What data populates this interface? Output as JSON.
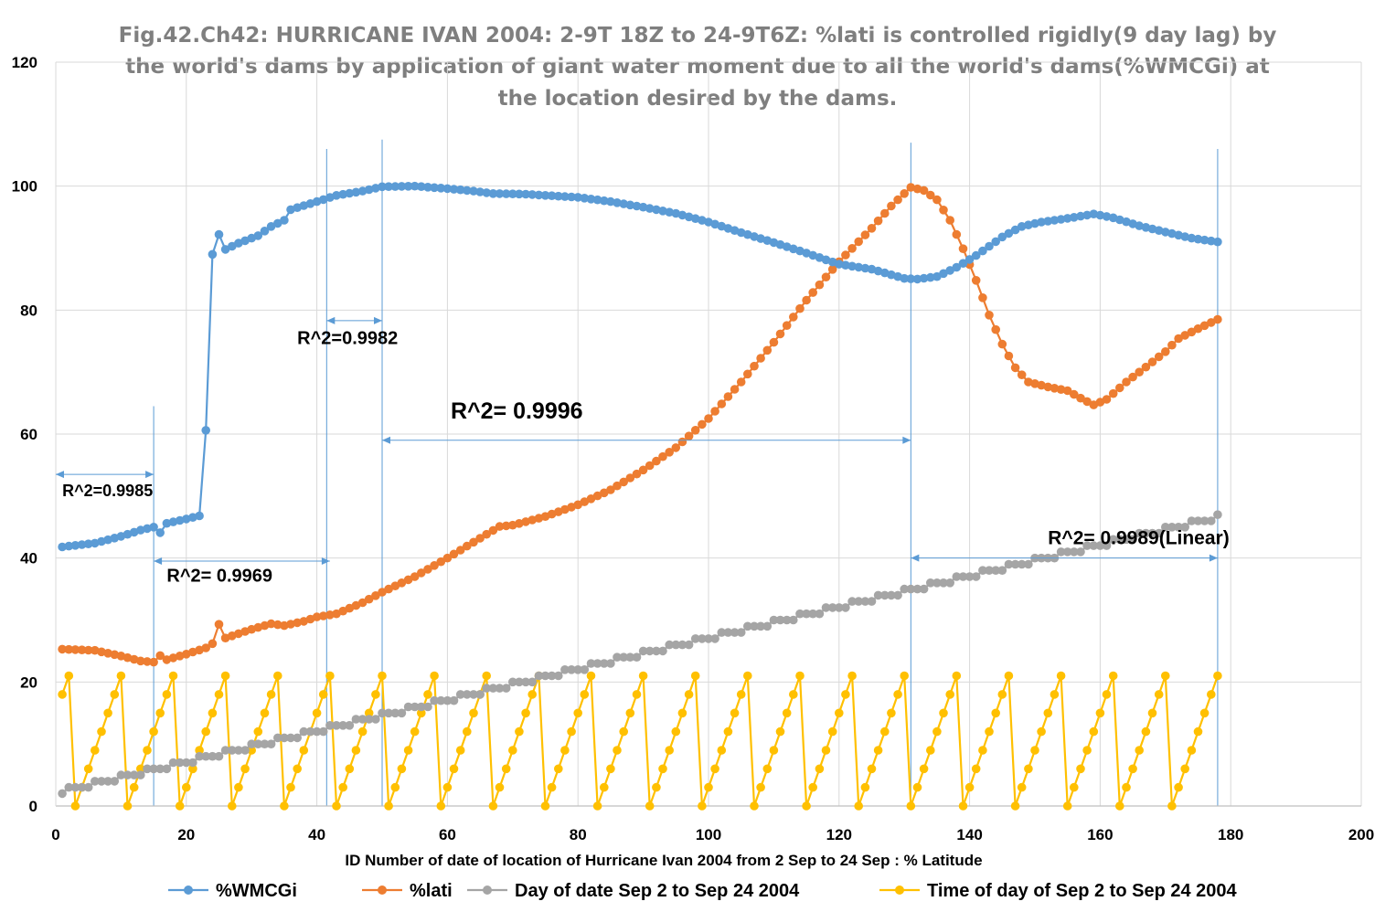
{
  "chart_data": {
    "type": "line",
    "title_lines": [
      "Fig.42.Ch42: HURRICANE IVAN 2004: 2-9T 18Z to 24-9T6Z:  %lati is controlled rigidly(9 day lag) by",
      "the world's dams by application of giant water moment due to all the world's dams(%WMCGi) at",
      "the location desired by the dams."
    ],
    "xlabel": "ID Number  of date of location of Hurricane Ivan 2004 from 2 Sep to 24 Sep : % Latitude",
    "ylabel": "",
    "xlim": [
      0,
      200
    ],
    "ylim": [
      0,
      120
    ],
    "x_ticks": [
      "0",
      "20",
      "40",
      "60",
      "80",
      "100",
      "120",
      "140",
      "160",
      "180",
      "200"
    ],
    "y_ticks": [
      "0",
      "20",
      "40",
      "60",
      "80",
      "100",
      "120"
    ],
    "grid": true,
    "legend_position": "bottom",
    "series": [
      {
        "name": "%WMCGi",
        "color": "#5b9bd5",
        "keypoints": [
          [
            1,
            41.8
          ],
          [
            6,
            42.4
          ],
          [
            10,
            43.5
          ],
          [
            13,
            44.5
          ],
          [
            15,
            45.0
          ],
          [
            15.8,
            43.8
          ],
          [
            17,
            45.6
          ],
          [
            20,
            46.3
          ],
          [
            22,
            46.8
          ],
          [
            23,
            60.6
          ],
          [
            24,
            89.0
          ],
          [
            25,
            92.2
          ],
          [
            26,
            89.8
          ],
          [
            28,
            90.8
          ],
          [
            31,
            92.0
          ],
          [
            33,
            93.5
          ],
          [
            35,
            94.5
          ],
          [
            36,
            96.2
          ],
          [
            40,
            97.5
          ],
          [
            43,
            98.5
          ],
          [
            47,
            99.2
          ],
          [
            50,
            99.9
          ],
          [
            55,
            100.0
          ],
          [
            60,
            99.6
          ],
          [
            64,
            99.2
          ],
          [
            67,
            98.8
          ],
          [
            72,
            98.7
          ],
          [
            75,
            98.5
          ],
          [
            80,
            98.2
          ],
          [
            85,
            97.5
          ],
          [
            90,
            96.6
          ],
          [
            95,
            95.6
          ],
          [
            100,
            94.2
          ],
          [
            105,
            92.5
          ],
          [
            110,
            90.9
          ],
          [
            115,
            89.2
          ],
          [
            120,
            87.4
          ],
          [
            125,
            86.6
          ],
          [
            130,
            85.1
          ],
          [
            132,
            85.0
          ],
          [
            135,
            85.4
          ],
          [
            138,
            86.9
          ],
          [
            141,
            88.8
          ],
          [
            145,
            91.8
          ],
          [
            148,
            93.5
          ],
          [
            151,
            94.2
          ],
          [
            155,
            94.8
          ],
          [
            159,
            95.5
          ],
          [
            162,
            94.9
          ],
          [
            166,
            93.6
          ],
          [
            170,
            92.6
          ],
          [
            174,
            91.6
          ],
          [
            178,
            91.0
          ]
        ]
      },
      {
        "name": "%lati",
        "color": "#ed7d31",
        "keypoints": [
          [
            1,
            25.3
          ],
          [
            6,
            25.1
          ],
          [
            10,
            24.2
          ],
          [
            13,
            23.4
          ],
          [
            15,
            23.2
          ],
          [
            15.8,
            24.4
          ],
          [
            17,
            23.6
          ],
          [
            20,
            24.5
          ],
          [
            23,
            25.5
          ],
          [
            24,
            26.2
          ],
          [
            25,
            29.3
          ],
          [
            26,
            27.1
          ],
          [
            30,
            28.5
          ],
          [
            33,
            29.4
          ],
          [
            35,
            29.1
          ],
          [
            38,
            29.8
          ],
          [
            40,
            30.5
          ],
          [
            43,
            31.0
          ],
          [
            47,
            32.8
          ],
          [
            50,
            34.5
          ],
          [
            55,
            37.0
          ],
          [
            60,
            40.0
          ],
          [
            65,
            43.2
          ],
          [
            68,
            45.1
          ],
          [
            70,
            45.3
          ],
          [
            75,
            46.7
          ],
          [
            80,
            48.6
          ],
          [
            85,
            51.0
          ],
          [
            90,
            54.2
          ],
          [
            95,
            57.8
          ],
          [
            100,
            62.5
          ],
          [
            105,
            68.4
          ],
          [
            110,
            74.8
          ],
          [
            115,
            81.6
          ],
          [
            120,
            87.8
          ],
          [
            125,
            93.2
          ],
          [
            128,
            96.8
          ],
          [
            131,
            99.8
          ],
          [
            133,
            99.3
          ],
          [
            135,
            97.8
          ],
          [
            137,
            94.5
          ],
          [
            139,
            89.9
          ],
          [
            141,
            84.8
          ],
          [
            143,
            79.2
          ],
          [
            145,
            74.5
          ],
          [
            147,
            70.7
          ],
          [
            149,
            68.4
          ],
          [
            152,
            67.6
          ],
          [
            155,
            67.0
          ],
          [
            157,
            65.8
          ],
          [
            159,
            64.7
          ],
          [
            161,
            65.6
          ],
          [
            164,
            68.4
          ],
          [
            167,
            70.8
          ],
          [
            170,
            73.3
          ],
          [
            172,
            75.4
          ],
          [
            175,
            77.0
          ],
          [
            178,
            78.5
          ]
        ]
      },
      {
        "name": "Day of date Sep 2 to Sep 24 2004",
        "color": "#a5a5a5",
        "start_index": 1,
        "start_day": 2,
        "first_day_count": 1,
        "readings_per_day": 4,
        "last_index": 178
      },
      {
        "name": "Time of day of Sep 2 to Sep 24 2004",
        "color": "#ffc000",
        "start_index": 1,
        "first_value": 18,
        "cycle": [
          0,
          3,
          6,
          9,
          12,
          15,
          18,
          21
        ],
        "readings_per_day": 8,
        "last_index": 178
      }
    ],
    "annotations": [
      {
        "text": "R^2=0.9985",
        "x": 1,
        "y": 50.0,
        "size": 18,
        "arrow": [
          0,
          15,
          53.5
        ]
      },
      {
        "text": "R^2= 0.9969",
        "x": 17,
        "y": 36.2,
        "size": 20,
        "arrow": [
          15,
          42,
          39.5
        ]
      },
      {
        "text": "R^2=0.9982",
        "x": 37,
        "y": 74.5,
        "size": 20,
        "arrow": [
          41.5,
          50,
          78.3
        ]
      },
      {
        "text": "R^2= 0.9996",
        "x": 60.5,
        "y": 62.5,
        "size": 25,
        "arrow": [
          50,
          131,
          59.0
        ]
      },
      {
        "text": "R^2= 0.9989(Linear)",
        "x": 152,
        "y": 42.2,
        "size": 21,
        "arrow": [
          131,
          178,
          40.0
        ]
      }
    ],
    "vertical_markers": [
      [
        15,
        64.5
      ],
      [
        41.5,
        106
      ],
      [
        50,
        107.5
      ],
      [
        131,
        107
      ],
      [
        178,
        106
      ]
    ]
  }
}
